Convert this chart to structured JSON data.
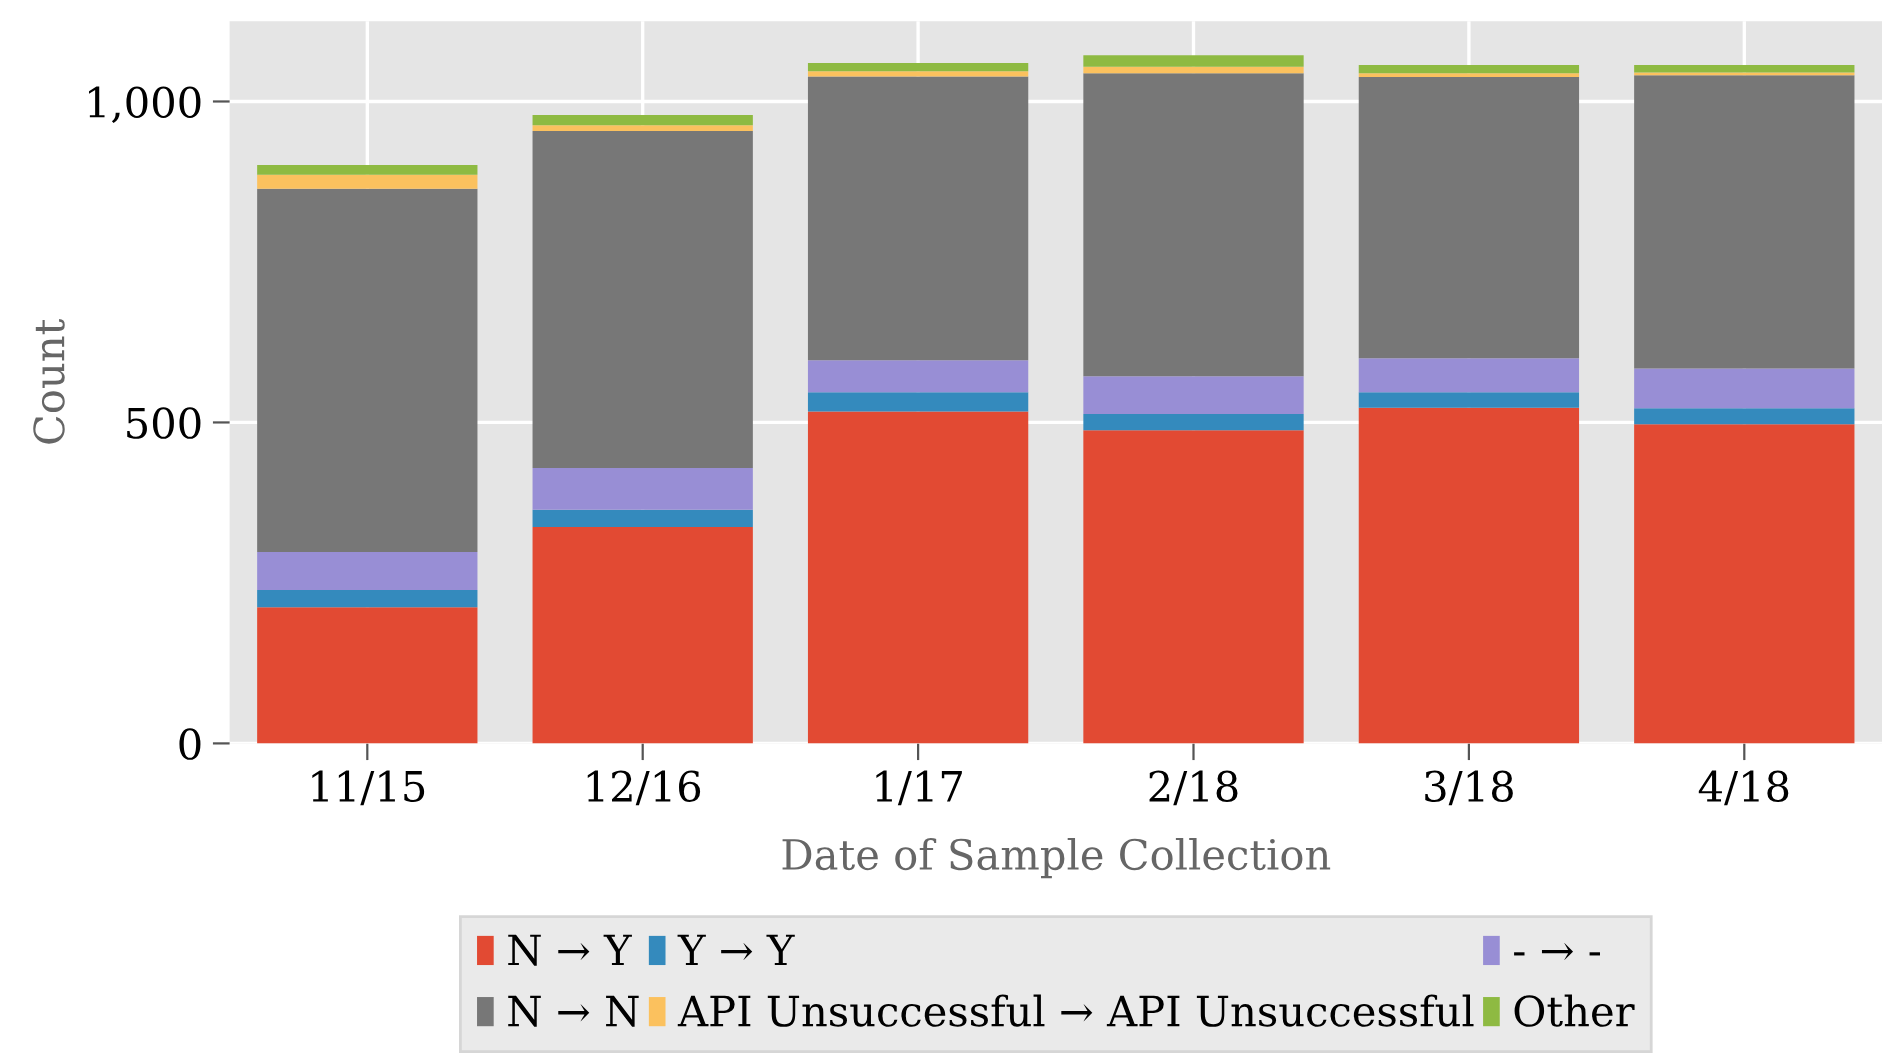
{
  "chart_data": {
    "type": "bar",
    "stacked": true,
    "xlabel": "Date of Sample Collection",
    "ylabel": "Count",
    "categories": [
      "11/15",
      "12/16",
      "1/17",
      "2/18",
      "3/18",
      "4/18"
    ],
    "series": [
      {
        "name": "N → Y",
        "color": "#e24a33",
        "values": [
          212,
          337,
          517,
          488,
          523,
          497
        ]
      },
      {
        "name": "Y → Y",
        "color": "#348abd",
        "values": [
          27,
          27,
          30,
          25,
          24,
          25
        ]
      },
      {
        "name": "- → -",
        "color": "#988ed5",
        "values": [
          59,
          65,
          50,
          59,
          53,
          62
        ]
      },
      {
        "name": "N → N",
        "color": "#777777",
        "values": [
          566,
          525,
          442,
          472,
          438,
          457
        ]
      },
      {
        "name": "API Unsuccessful → API Unsuccessful",
        "color": "#fbc15e",
        "values": [
          22,
          9,
          8,
          10,
          6,
          4
        ]
      },
      {
        "name": "Other",
        "color": "#8eba42",
        "values": [
          15,
          16,
          13,
          18,
          13,
          12
        ]
      }
    ],
    "ylim": [
      0,
      1125
    ],
    "yticks": [
      0,
      500,
      {
        "value": 1000,
        "label": "1,000"
      }
    ],
    "grid": true,
    "legend": "bottom"
  }
}
